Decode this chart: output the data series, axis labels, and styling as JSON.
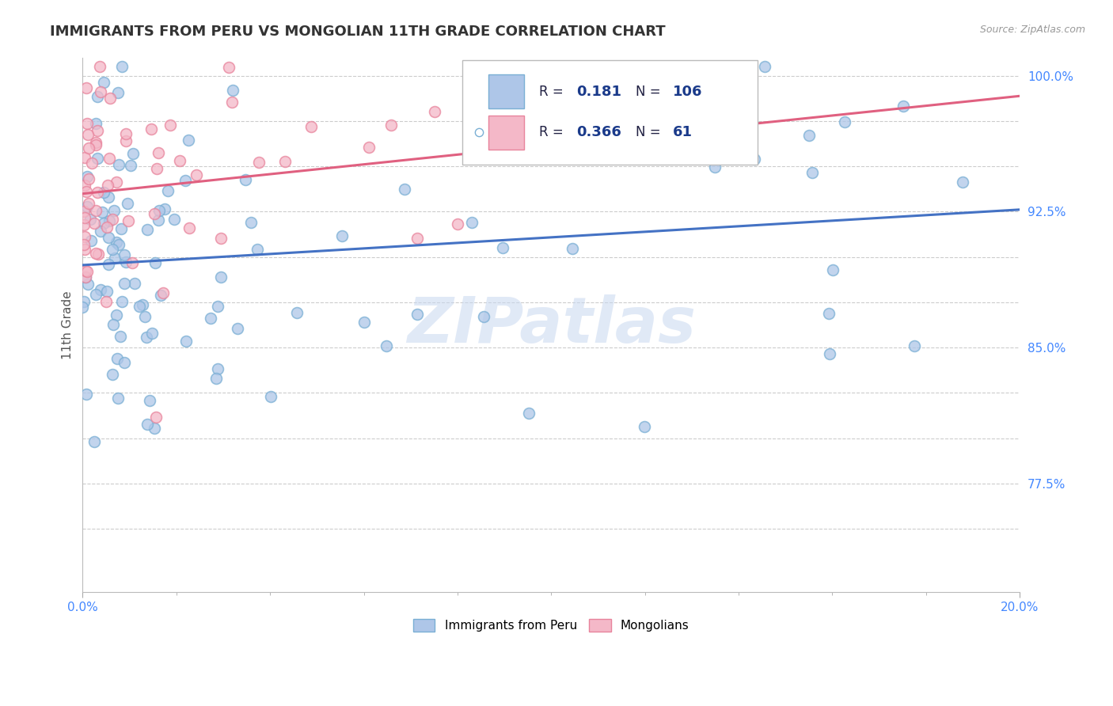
{
  "title": "IMMIGRANTS FROM PERU VS MONGOLIAN 11TH GRADE CORRELATION CHART",
  "source_text": "Source: ZipAtlas.com",
  "ylabel": "11th Grade",
  "xlim": [
    0.0,
    0.2
  ],
  "ylim": [
    0.715,
    1.01
  ],
  "peru_color": "#aec6e8",
  "peru_edge": "#7aafd4",
  "mongolian_color": "#f4b8c8",
  "mongolian_edge": "#e8849c",
  "trend_peru_color": "#4472c4",
  "trend_mongolian_color": "#e06080",
  "R_peru": 0.181,
  "N_peru": 106,
  "R_mongolian": 0.366,
  "N_mongolian": 61,
  "legend_text_color": "#1a3a8a",
  "legend_label_color": "#333333",
  "background_color": "#ffffff",
  "grid_color": "#cccccc",
  "watermark": "ZIPatlas",
  "marker_size": 100
}
